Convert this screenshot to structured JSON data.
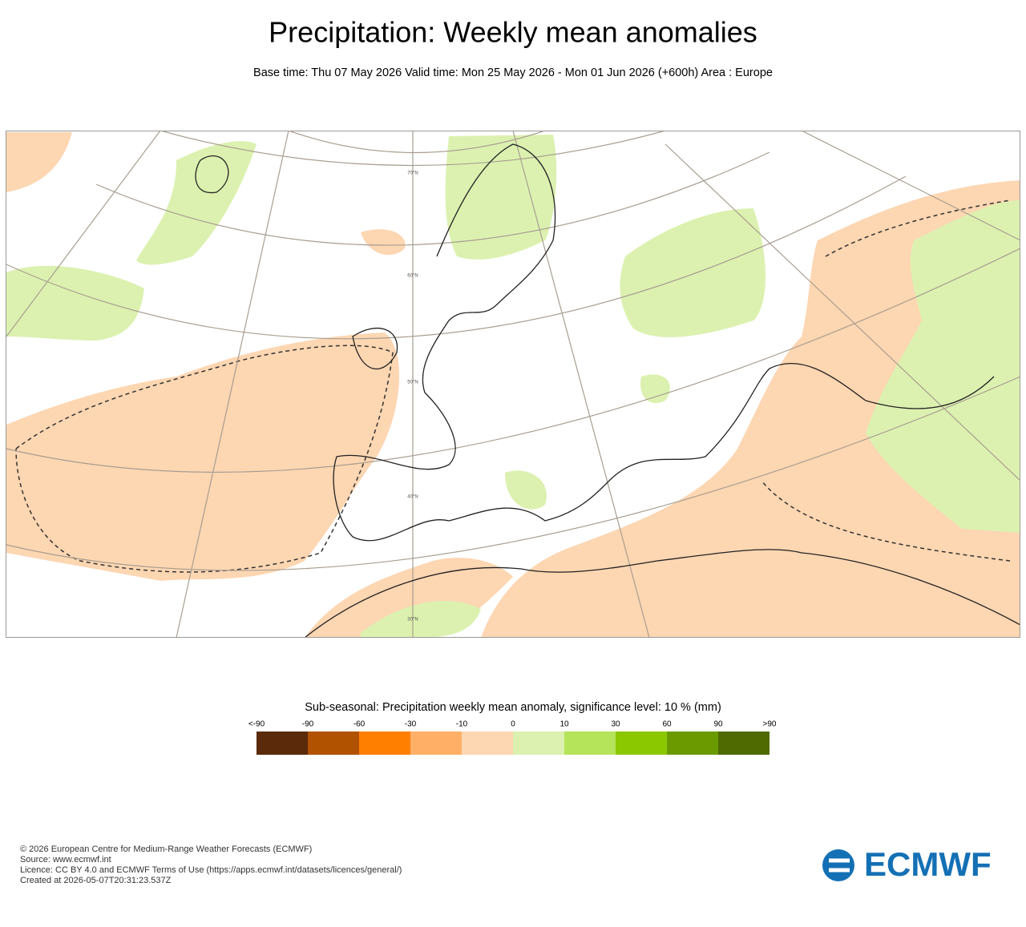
{
  "header": {
    "title": "Precipitation: Weekly mean anomalies",
    "subtitle": "Base time: Thu 07 May 2026 Valid time: Mon 25 May 2026 - Mon 01 Jun 2026 (+600h) Area : Europe"
  },
  "map": {
    "lat_labels": [
      "70°N",
      "60°N",
      "50°N",
      "40°N",
      "30°N"
    ]
  },
  "legend": {
    "title": "Sub-seasonal: Precipitation weekly mean anomaly, significance level: 10 % (mm)",
    "labels": [
      "<-90",
      "-90",
      "-60",
      "-30",
      "-10",
      "0",
      "10",
      "30",
      "60",
      "90",
      ">90"
    ],
    "colors": [
      "#5a2a0a",
      "#b05200",
      "#ff7f00",
      "#ffb066",
      "#fdd6b2",
      "#dcf1b0",
      "#b5e35a",
      "#8cc800",
      "#6a9a00",
      "#4e6a00"
    ]
  },
  "footer": {
    "lines": [
      "© 2026 European Centre for Medium-Range Weather Forecasts (ECMWF)",
      "Source: www.ecmwf.int",
      "Licence: CC BY 4.0 and ECMWF Terms of Use (https://apps.ecmwf.int/datasets/licences/general/)",
      "Created at 2026-05-07T20:31:23.537Z"
    ],
    "logo": "ECMWF"
  }
}
